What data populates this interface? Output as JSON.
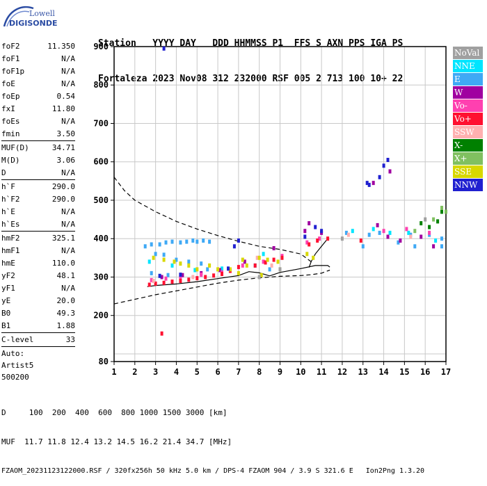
{
  "logo": {
    "lowell": "Lowell",
    "digisonde": "DIGISONDE"
  },
  "header": {
    "line1": "Station   YYYY DAY   DDD HHMMSS P1  FFS S AXN PPS IGA PS",
    "line2": "Fortaleza 2023 Nov08 312 232000 RSF 005 2 713 100 10+ 22"
  },
  "params": {
    "group1": [
      {
        "label": "foF2",
        "value": "11.350"
      },
      {
        "label": "foF1",
        "value": "N/A"
      },
      {
        "label": "foF1p",
        "value": "N/A"
      },
      {
        "label": "foE",
        "value": "N/A"
      },
      {
        "label": "foEp",
        "value": "0.54"
      },
      {
        "label": "fxI",
        "value": "11.80"
      },
      {
        "label": "foEs",
        "value": "N/A"
      },
      {
        "label": "fmin",
        "value": "3.50"
      }
    ],
    "group2": [
      {
        "label": "MUF(D)",
        "value": "34.71"
      },
      {
        "label": "M(D)",
        "value": "3.06"
      },
      {
        "label": "D",
        "value": "N/A"
      }
    ],
    "group3": [
      {
        "label": "h`F",
        "value": "290.0"
      },
      {
        "label": "h`F2",
        "value": "290.0"
      },
      {
        "label": "h`E",
        "value": "N/A"
      },
      {
        "label": "h`Es",
        "value": "N/A"
      }
    ],
    "group4": [
      {
        "label": "hmF2",
        "value": "325.1"
      },
      {
        "label": "hmF1",
        "value": "N/A"
      },
      {
        "label": "hmE",
        "value": "110.0"
      },
      {
        "label": "yF2",
        "value": "48.1"
      },
      {
        "label": "yF1",
        "value": "N/A"
      },
      {
        "label": "yE",
        "value": "20.0"
      },
      {
        "label": "B0",
        "value": "49.3"
      },
      {
        "label": "B1",
        "value": "1.88"
      }
    ],
    "clevel": {
      "label": "C-level",
      "value": "33"
    },
    "auto": [
      "Auto:",
      "Artist5",
      "500200"
    ]
  },
  "legend": [
    {
      "label": "NoVal",
      "color": "#a0a0a0"
    },
    {
      "label": "NNE",
      "color": "#00e5ff"
    },
    {
      "label": "E",
      "color": "#3fa9f5"
    },
    {
      "label": "W",
      "color": "#a000a0"
    },
    {
      "label": "Vo-",
      "color": "#ff40b0"
    },
    {
      "label": "Vo+",
      "color": "#ff1030"
    },
    {
      "label": "SSW",
      "color": "#ffb0b0"
    },
    {
      "label": "X-",
      "color": "#008000"
    },
    {
      "label": "X+",
      "color": "#80c060"
    },
    {
      "label": "SSE",
      "color": "#d8d800"
    },
    {
      "label": "NNW",
      "color": "#2020d0"
    }
  ],
  "footer": {
    "line1": "D     100  200  400  600  800 1000 1500 3000 [km]",
    "line2": "MUF  11.7 11.8 12.4 13.2 14.5 16.2 21.4 34.7 [MHz]",
    "line3": "FZAOM_20231123122000.RSF / 320fx256h 50 kHz 5.0 km / DPS-4 FZAOM 904 / 3.9 S 321.6 E   Ion2Png 1.3.20"
  },
  "chart_data": {
    "type": "scatter",
    "title": "",
    "xlabel": "",
    "ylabel": "",
    "xlim": [
      1,
      17
    ],
    "ylim": [
      80,
      900
    ],
    "xticks": [
      1,
      2,
      3,
      4,
      5,
      6,
      7,
      8,
      9,
      10,
      11,
      12,
      13,
      14,
      15,
      16,
      17
    ],
    "yticks": [
      80,
      200,
      300,
      400,
      500,
      600,
      700,
      800,
      900
    ],
    "y_gridlines": [
      100,
      200,
      300,
      400,
      500,
      600,
      700,
      800,
      900
    ],
    "grid": true,
    "legend_position": "right",
    "series": [
      {
        "name": "E",
        "color": "#3fa9f5",
        "points": [
          [
            2.5,
            380
          ],
          [
            2.8,
            385
          ],
          [
            3.2,
            385
          ],
          [
            3.5,
            390
          ],
          [
            3.8,
            392
          ],
          [
            4.2,
            390
          ],
          [
            4.5,
            392
          ],
          [
            4.8,
            395
          ],
          [
            5.0,
            392
          ],
          [
            5.3,
            395
          ],
          [
            5.6,
            392
          ],
          [
            3.0,
            360
          ],
          [
            3.4,
            358
          ],
          [
            4.0,
            345
          ],
          [
            4.6,
            340
          ],
          [
            5.2,
            335
          ],
          [
            2.8,
            310
          ],
          [
            3.6,
            305
          ],
          [
            5.5,
            320
          ],
          [
            7.8,
            330
          ],
          [
            8.5,
            320
          ],
          [
            12.2,
            415
          ],
          [
            13.3,
            410
          ],
          [
            13.8,
            415
          ],
          [
            14.7,
            390
          ],
          [
            15.3,
            410
          ],
          [
            16.2,
            410
          ],
          [
            16.8,
            400
          ],
          [
            13.0,
            380
          ],
          [
            15.5,
            380
          ],
          [
            16.8,
            380
          ]
        ]
      },
      {
        "name": "NNE",
        "color": "#00e5ff",
        "points": [
          [
            2.7,
            340
          ],
          [
            3.8,
            330
          ],
          [
            4.9,
            318
          ],
          [
            6.2,
            322
          ],
          [
            8.2,
            360
          ],
          [
            12.5,
            420
          ],
          [
            13.5,
            425
          ],
          [
            14.3,
            415
          ],
          [
            15.2,
            415
          ],
          [
            16.5,
            395
          ]
        ]
      },
      {
        "name": "W",
        "color": "#a000a0",
        "points": [
          [
            3.3,
            300
          ],
          [
            4.3,
            305
          ],
          [
            5.2,
            310
          ],
          [
            6.1,
            318
          ],
          [
            7.3,
            340
          ],
          [
            8.7,
            375
          ],
          [
            10.2,
            420
          ],
          [
            10.4,
            440
          ],
          [
            11.0,
            415
          ],
          [
            13.7,
            435
          ],
          [
            14.2,
            405
          ],
          [
            14.8,
            395
          ],
          [
            15.8,
            405
          ],
          [
            16.4,
            380
          ],
          [
            13.5,
            545
          ],
          [
            14.3,
            575
          ]
        ]
      },
      {
        "name": "Vo-",
        "color": "#ff40b0",
        "points": [
          [
            2.8,
            292
          ],
          [
            3.5,
            296
          ],
          [
            4.2,
            300
          ],
          [
            5.2,
            306
          ],
          [
            6.2,
            312
          ],
          [
            7.2,
            330
          ],
          [
            8.2,
            340
          ],
          [
            9.1,
            355
          ],
          [
            10.3,
            390
          ],
          [
            10.9,
            400
          ],
          [
            14.0,
            420
          ],
          [
            15.1,
            425
          ],
          [
            16.2,
            415
          ]
        ]
      },
      {
        "name": "Vo+",
        "color": "#ff1030",
        "points": [
          [
            2.7,
            280
          ],
          [
            3.0,
            283
          ],
          [
            3.4,
            285
          ],
          [
            3.8,
            288
          ],
          [
            4.2,
            290
          ],
          [
            4.6,
            293
          ],
          [
            5.0,
            297
          ],
          [
            5.4,
            300
          ],
          [
            5.8,
            304
          ],
          [
            6.2,
            308
          ],
          [
            6.6,
            316
          ],
          [
            7.0,
            326
          ],
          [
            7.8,
            330
          ],
          [
            8.3,
            338
          ],
          [
            8.7,
            345
          ],
          [
            9.1,
            350
          ],
          [
            10.4,
            385
          ],
          [
            10.8,
            395
          ],
          [
            11.3,
            400
          ],
          [
            12.9,
            395
          ],
          [
            3.3,
            153
          ]
        ]
      },
      {
        "name": "SSW",
        "color": "#ffb0b0",
        "points": [
          [
            2.9,
            290
          ],
          [
            4.8,
            300
          ],
          [
            7.9,
            350
          ],
          [
            8.6,
            330
          ],
          [
            12.3,
            410
          ],
          [
            15.3,
            405
          ]
        ]
      },
      {
        "name": "X-",
        "color": "#008000",
        "points": [
          [
            16.2,
            430
          ],
          [
            16.6,
            445
          ],
          [
            16.8,
            470
          ],
          [
            15.8,
            440
          ]
        ]
      },
      {
        "name": "X+",
        "color": "#80c060",
        "points": [
          [
            16.4,
            450
          ],
          [
            16.8,
            480
          ],
          [
            17.0,
            470
          ],
          [
            15.5,
            420
          ]
        ]
      },
      {
        "name": "SSE",
        "color": "#d8d800",
        "points": [
          [
            2.9,
            350
          ],
          [
            3.4,
            345
          ],
          [
            3.9,
            340
          ],
          [
            4.2,
            335
          ],
          [
            4.6,
            330
          ],
          [
            5.0,
            320
          ],
          [
            5.6,
            330
          ],
          [
            6.0,
            320
          ],
          [
            6.6,
            320
          ],
          [
            7.0,
            310
          ],
          [
            7.4,
            330
          ],
          [
            8.0,
            350
          ],
          [
            8.4,
            345
          ],
          [
            8.9,
            340
          ],
          [
            7.2,
            345
          ],
          [
            10.3,
            360
          ],
          [
            10.6,
            350
          ],
          [
            9.0,
            320
          ],
          [
            8.1,
            305
          ]
        ]
      },
      {
        "name": "NNW",
        "color": "#2020d0",
        "points": [
          [
            3.2,
            303
          ],
          [
            4.2,
            306
          ],
          [
            6.5,
            322
          ],
          [
            7.0,
            395
          ],
          [
            6.8,
            380
          ],
          [
            10.2,
            405
          ],
          [
            10.7,
            430
          ],
          [
            11.0,
            420
          ],
          [
            13.2,
            545
          ],
          [
            13.3,
            540
          ],
          [
            13.8,
            560
          ],
          [
            14.0,
            590
          ],
          [
            14.2,
            605
          ],
          [
            3.4,
            895
          ]
        ]
      },
      {
        "name": "NoVal",
        "color": "#a0a0a0",
        "points": [
          [
            8.0,
            300
          ],
          [
            9.0,
            320
          ],
          [
            12.0,
            400
          ],
          [
            16.0,
            450
          ]
        ]
      }
    ],
    "curves": [
      {
        "style": "dashed",
        "color": "#000000",
        "points": [
          [
            1,
            560
          ],
          [
            1.5,
            525
          ],
          [
            2,
            500
          ],
          [
            3,
            470
          ],
          [
            4,
            445
          ],
          [
            5,
            425
          ],
          [
            6,
            408
          ],
          [
            7,
            393
          ],
          [
            8,
            380
          ],
          [
            9,
            372
          ],
          [
            10,
            360
          ],
          [
            10.5,
            340
          ]
        ]
      },
      {
        "style": "dashed",
        "color": "#000000",
        "points": [
          [
            1,
            230
          ],
          [
            2,
            242
          ],
          [
            3,
            254
          ],
          [
            4,
            264
          ],
          [
            5,
            274
          ],
          [
            6,
            284
          ],
          [
            7,
            292
          ],
          [
            8,
            298
          ],
          [
            9,
            302
          ],
          [
            10,
            304
          ],
          [
            10.5,
            306
          ],
          [
            11,
            310
          ],
          [
            11.4,
            318
          ]
        ]
      },
      {
        "style": "solid",
        "color": "#000000",
        "points": [
          [
            2.6,
            275
          ],
          [
            3,
            278
          ],
          [
            4,
            282
          ],
          [
            5,
            288
          ],
          [
            6,
            296
          ],
          [
            7,
            304
          ],
          [
            7.5,
            314
          ],
          [
            8,
            311
          ],
          [
            8.5,
            303
          ],
          [
            9,
            312
          ],
          [
            10,
            322
          ],
          [
            10.7,
            330
          ],
          [
            11.3,
            330
          ],
          [
            11.4,
            326
          ]
        ]
      },
      {
        "style": "solid",
        "color": "#000000",
        "points": [
          [
            10.4,
            325
          ],
          [
            10.5,
            340
          ],
          [
            10.7,
            360
          ],
          [
            11,
            380
          ],
          [
            11.3,
            400
          ]
        ]
      }
    ]
  }
}
